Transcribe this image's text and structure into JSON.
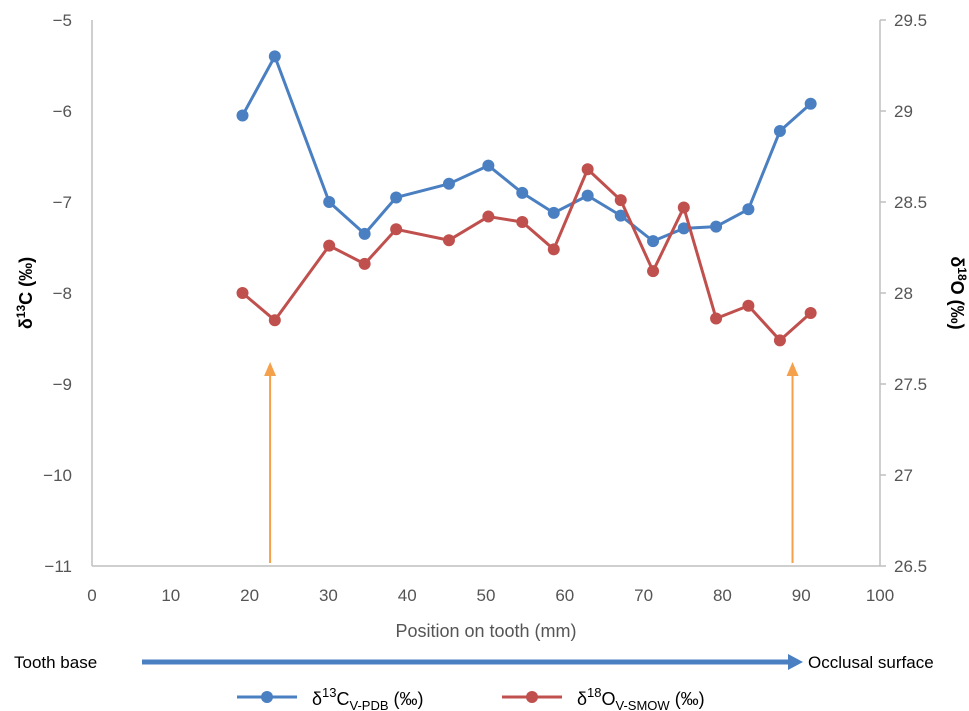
{
  "chart_data": {
    "type": "line",
    "xlabel": "Position on tooth (mm)",
    "xlim": [
      0,
      100
    ],
    "x_ticks": [
      "0",
      "10",
      "20",
      "30",
      "40",
      "50",
      "60",
      "70",
      "80",
      "90",
      "100"
    ],
    "left_axis": {
      "label_prefix": "δ",
      "label_sup": "13",
      "label_main": "C (‰)",
      "ylim": [
        -11,
        -5
      ],
      "ticks": [
        "−11",
        "−10",
        "−9",
        "−8",
        "−7",
        "−6",
        "−5"
      ]
    },
    "right_axis": {
      "label_prefix": "δ",
      "label_sup": "18",
      "label_main": "O (‰)",
      "ylim": [
        26.5,
        29.5
      ],
      "ticks": [
        "26.5",
        "27",
        "27.5",
        "28",
        "28.5",
        "29",
        "29.5"
      ]
    },
    "series": [
      {
        "axis": "left",
        "color": "#4a7fc1",
        "legend_prefix": "δ",
        "legend_sup": "13",
        "legend_base": "C",
        "legend_sub": "V-PDB",
        "legend_suffix": " (‰)",
        "x": [
          19.1,
          23.2,
          30.1,
          34.6,
          38.6,
          45.3,
          50.3,
          54.6,
          58.6,
          62.9,
          67.1,
          71.2,
          75.1,
          79.2,
          83.3,
          87.3,
          91.2
        ],
        "y": [
          -6.05,
          -5.4,
          -7.0,
          -7.35,
          -6.95,
          -6.8,
          -6.6,
          -6.9,
          -7.12,
          -6.93,
          -7.15,
          -7.43,
          -7.29,
          -7.27,
          -7.08,
          -6.22,
          -5.92
        ]
      },
      {
        "axis": "right",
        "color": "#c0504d",
        "legend_prefix": "δ",
        "legend_sup": "18",
        "legend_base": "O",
        "legend_sub": "V-SMOW",
        "legend_suffix": " (‰)",
        "x": [
          19.1,
          23.2,
          30.1,
          34.6,
          38.6,
          45.3,
          50.3,
          54.6,
          58.6,
          62.9,
          67.1,
          71.2,
          75.1,
          79.2,
          83.3,
          87.3,
          91.2
        ],
        "y": [
          28.0,
          27.85,
          28.26,
          28.16,
          28.35,
          28.29,
          28.42,
          28.39,
          28.24,
          28.68,
          28.51,
          28.12,
          28.47,
          27.86,
          27.93,
          27.74,
          27.89
        ]
      }
    ],
    "arrows_at_x": [
      22.6,
      88.9
    ],
    "arrow_color": "#f5a04a",
    "grid": false,
    "legend_position": "bottom"
  },
  "bottom_band": {
    "left_label": "Tooth base",
    "right_label": "Occlusal surface",
    "arrow_color": "#4a7fc1"
  }
}
